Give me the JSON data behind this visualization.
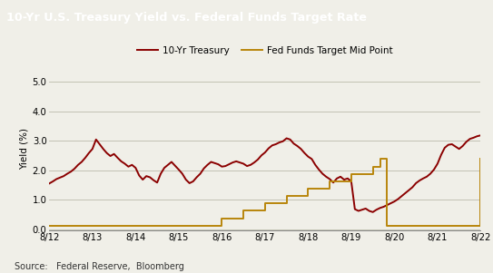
{
  "title": "10-Yr U.S. Treasury Yield vs. Federal Funds Target Rate",
  "ylabel": "Yield (%)",
  "source_text": "Source:   Federal Reserve,  Bloomberg",
  "legend_labels": [
    "10-Yr Treasury",
    "Fed Funds Target Mid Point"
  ],
  "treasury_color": "#8B0000",
  "fed_color": "#B8860B",
  "background_color": "#F0EFE8",
  "title_bg_color": "#1A1A1A",
  "title_text_color": "#FFFFFF",
  "ylim": [
    -0.05,
    5.5
  ],
  "yticks": [
    0.0,
    1.0,
    2.0,
    3.0,
    4.0,
    5.0
  ],
  "xtick_labels": [
    "8/12",
    "8/13",
    "8/14",
    "8/15",
    "8/16",
    "8/17",
    "8/18",
    "8/19",
    "8/20",
    "8/21",
    "8/22"
  ],
  "treasury_y": [
    1.55,
    1.62,
    1.7,
    1.75,
    1.8,
    1.88,
    1.95,
    2.05,
    2.18,
    2.28,
    2.42,
    2.58,
    2.72,
    3.04,
    2.88,
    2.72,
    2.58,
    2.48,
    2.55,
    2.42,
    2.3,
    2.22,
    2.12,
    2.18,
    2.08,
    1.82,
    1.68,
    1.8,
    1.76,
    1.66,
    1.58,
    1.88,
    2.08,
    2.18,
    2.28,
    2.15,
    2.02,
    1.88,
    1.68,
    1.56,
    1.62,
    1.76,
    1.88,
    2.06,
    2.18,
    2.28,
    2.24,
    2.2,
    2.12,
    2.14,
    2.2,
    2.26,
    2.3,
    2.26,
    2.22,
    2.14,
    2.18,
    2.26,
    2.36,
    2.5,
    2.6,
    2.74,
    2.84,
    2.88,
    2.94,
    2.98,
    3.08,
    3.04,
    2.9,
    2.82,
    2.72,
    2.58,
    2.46,
    2.38,
    2.18,
    2.02,
    1.88,
    1.78,
    1.7,
    1.58,
    1.72,
    1.78,
    1.68,
    1.72,
    1.62,
    0.68,
    0.62,
    0.66,
    0.7,
    0.62,
    0.58,
    0.66,
    0.72,
    0.76,
    0.82,
    0.88,
    0.94,
    1.02,
    1.12,
    1.22,
    1.32,
    1.42,
    1.56,
    1.65,
    1.72,
    1.78,
    1.88,
    2.02,
    2.22,
    2.52,
    2.76,
    2.86,
    2.88,
    2.8,
    2.72,
    2.82,
    2.96,
    3.06,
    3.1,
    3.15,
    3.18
  ],
  "fed_steps_x": [
    0.0,
    3.5,
    4.0,
    4.5,
    5.0,
    5.5,
    6.0,
    6.5,
    7.0,
    7.5,
    7.67,
    7.83,
    8.0,
    9.83,
    10.0
  ],
  "fed_steps_y": [
    0.125,
    0.125,
    0.375,
    0.625,
    0.875,
    1.125,
    1.375,
    1.625,
    1.875,
    2.125,
    2.375,
    0.125,
    0.125,
    0.125,
    2.375
  ]
}
